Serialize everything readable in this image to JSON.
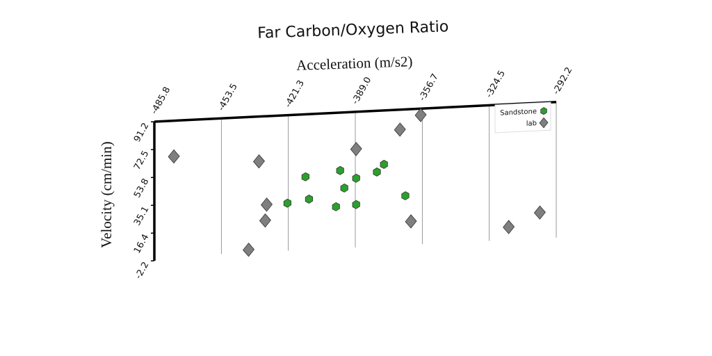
{
  "chart_data": {
    "type": "scatter",
    "title": "Far Carbon/Oxygen Ratio",
    "x_label": "Acceleration (m/s2)",
    "y_label": "Velocity (cm/min)",
    "xlim": [
      -485.8,
      -292.2
    ],
    "ylim": [
      -2.2,
      91.2
    ],
    "xticks": [
      -485.8,
      -453.5,
      -421.3,
      {
        "value": -389.0,
        "label": "-389.0"
      },
      -356.7,
      -324.5,
      -292.2
    ],
    "yticks": [
      91.2,
      72.5,
      53.8,
      35.1,
      16.4,
      -2.2
    ],
    "grid": "x",
    "legend": "upper right",
    "series": [
      {
        "name": "Sandstone",
        "color": "#2ca02c",
        "marker": "hexagon",
        "x": [
          -413.0,
          -396.3,
          -388.6,
          -375.2,
          -378.6,
          -394.3,
          -411.3,
          -421.7,
          -398.3,
          -388.6,
          -364.9
        ],
        "values": [
          49.2,
          52.3,
          46.6,
          55.0,
          50.1,
          40.4,
          34.1,
          32.1,
          28.1,
          28.9,
          33.2
        ]
      },
      {
        "name": "lab",
        "color": "#7f7f7f",
        "marker": "diamond",
        "x": [
          -476.4,
          -435.4,
          -367.5,
          -357.5,
          -388.6,
          -431.7,
          -432.4,
          -440.4,
          -362.2,
          -315.1,
          -300.1
        ],
        "values": [
          67.2,
          61.1,
          77.8,
          86.9,
          66.2,
          31.8,
          21.2,
          2.1,
          15.8,
          8.8,
          17.5
        ]
      }
    ]
  }
}
